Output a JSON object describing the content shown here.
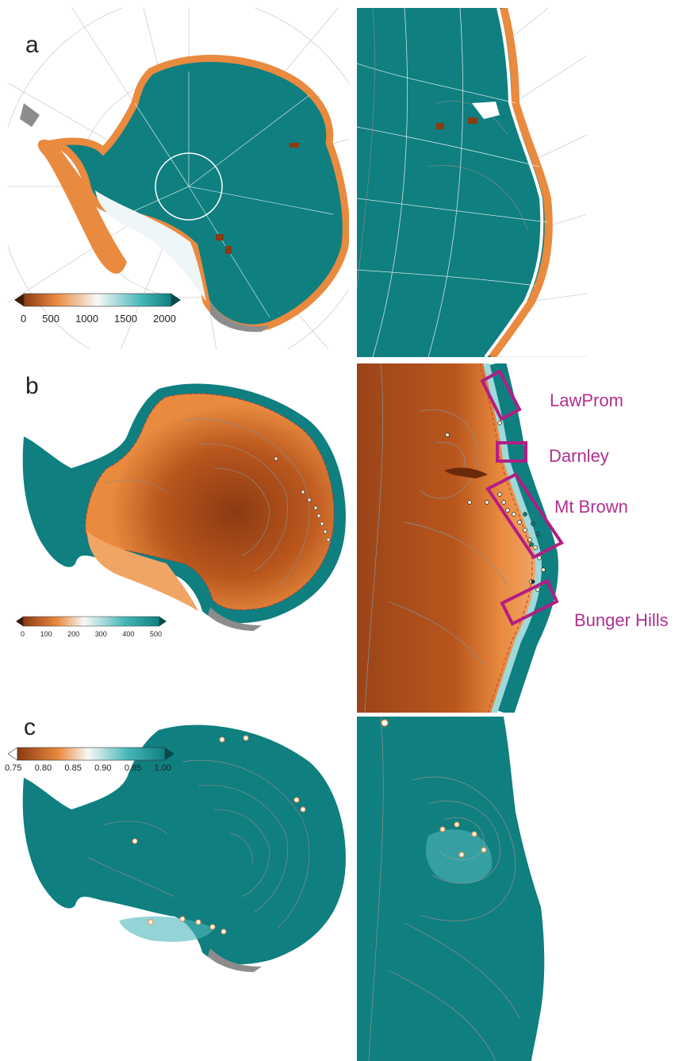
{
  "panels": {
    "a": {
      "letter": "a",
      "colorbar": {
        "ticks": [
          "0",
          "500",
          "1000",
          "1500",
          "2000"
        ]
      }
    },
    "b": {
      "letter": "b",
      "colorbar": {
        "ticks": [
          "0",
          "100",
          "200",
          "300",
          "400",
          "500"
        ]
      },
      "regions": [
        "LawProm",
        "Darnley",
        "Mt Brown",
        "Bunger Hills"
      ]
    },
    "c": {
      "letter": "c",
      "colorbar": {
        "ticks": [
          "0.75",
          "0.80",
          "0.85",
          "0.90",
          "0.95",
          "1.00"
        ]
      }
    }
  },
  "colors": {
    "teal": "#0f7f80",
    "orange": "#e98a3f",
    "dark_brown": "#8b3a12",
    "light": "#f5f0e8",
    "grey": "#8c8c8c",
    "magenta": "#b31d84"
  }
}
